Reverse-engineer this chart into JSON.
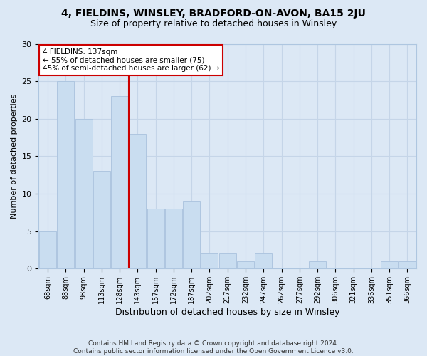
{
  "title": "4, FIELDINS, WINSLEY, BRADFORD-ON-AVON, BA15 2JU",
  "subtitle": "Size of property relative to detached houses in Winsley",
  "xlabel": "Distribution of detached houses by size in Winsley",
  "ylabel": "Number of detached properties",
  "bar_labels": [
    "68sqm",
    "83sqm",
    "98sqm",
    "113sqm",
    "128sqm",
    "143sqm",
    "157sqm",
    "172sqm",
    "187sqm",
    "202sqm",
    "217sqm",
    "232sqm",
    "247sqm",
    "262sqm",
    "277sqm",
    "292sqm",
    "306sqm",
    "321sqm",
    "336sqm",
    "351sqm",
    "366sqm"
  ],
  "bar_values": [
    5,
    25,
    20,
    13,
    23,
    18,
    8,
    8,
    9,
    2,
    2,
    1,
    2,
    0,
    0,
    1,
    0,
    0,
    0,
    1,
    1
  ],
  "bar_color": "#c9ddf0",
  "bar_edge_color": "#aec6e0",
  "vline_x": 4.5,
  "vline_color": "#cc0000",
  "annotation_text": "4 FIELDINS: 137sqm\n← 55% of detached houses are smaller (75)\n45% of semi-detached houses are larger (62) →",
  "annotation_box_color": "#ffffff",
  "annotation_box_edge_color": "#cc0000",
  "ylim": [
    0,
    30
  ],
  "yticks": [
    0,
    5,
    10,
    15,
    20,
    25,
    30
  ],
  "grid_color": "#c5d5e8",
  "background_color": "#dce8f5",
  "fig_background_color": "#dce8f5",
  "footer_line1": "Contains HM Land Registry data © Crown copyright and database right 2024.",
  "footer_line2": "Contains public sector information licensed under the Open Government Licence v3.0."
}
